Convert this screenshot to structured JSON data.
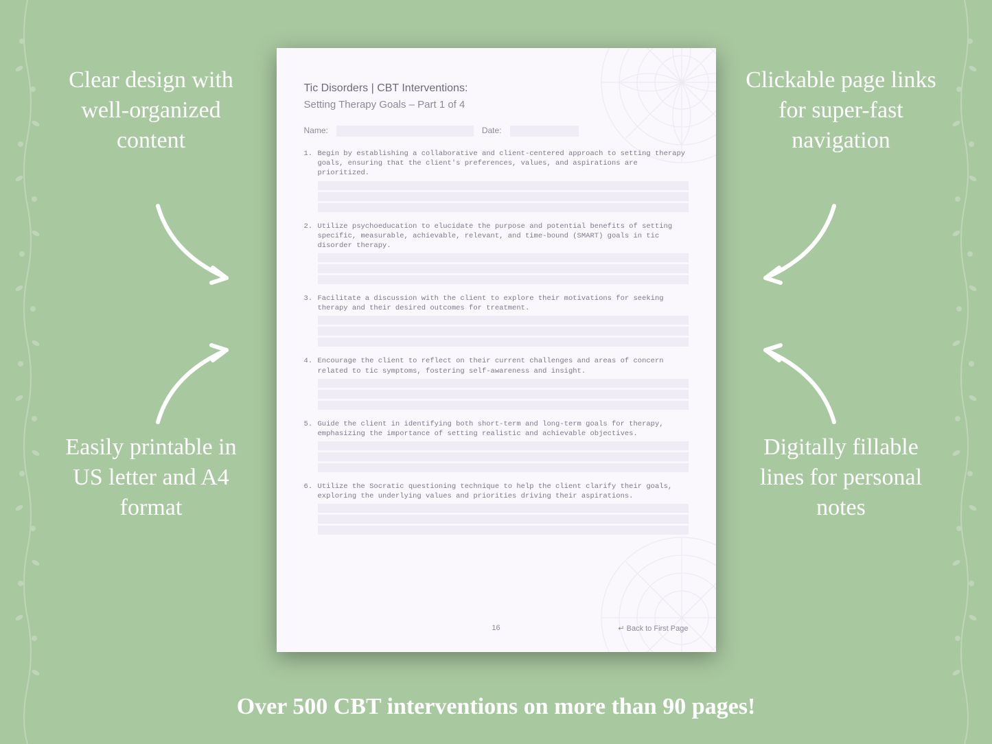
{
  "background_color": "#a8c8a0",
  "page_bg": "#faf8fc",
  "fill_color": "#f0ecf6",
  "text_muted": "#8a8a9a",
  "callouts": {
    "top_left": "Clear design with well-organized content",
    "top_right": "Clickable page links for super-fast navigation",
    "bottom_left": "Easily printable in US letter and A4 format",
    "bottom_right": "Digitally fillable lines for personal notes"
  },
  "tagline": "Over 500 CBT interventions on more than 90 pages!",
  "doc": {
    "heading": "Tic Disorders | CBT Interventions:",
    "subheading": "Setting Therapy Goals  – Part 1 of 4",
    "name_label": "Name:",
    "date_label": "Date:",
    "items": [
      "Begin by establishing a collaborative and client-centered approach to setting therapy goals, ensuring that the client's preferences, values, and aspirations are prioritized.",
      "Utilize psychoeducation to elucidate the purpose and potential benefits of setting specific, measurable, achievable, relevant, and time-bound (SMART) goals in tic disorder therapy.",
      "Facilitate a discussion with the client to explore their motivations for seeking therapy and their desired outcomes for treatment.",
      "Encourage the client to reflect on their current challenges and areas of concern related to tic symptoms, fostering self-awareness and insight.",
      "Guide the client in identifying both short-term and long-term goals for therapy, emphasizing the importance of setting realistic and achievable objectives.",
      "Utilize the Socratic questioning technique to help the client clarify their goals, exploring the underlying values and priorities driving their aspirations."
    ],
    "page_number": "16",
    "back_link": "↵ Back to First Page"
  }
}
